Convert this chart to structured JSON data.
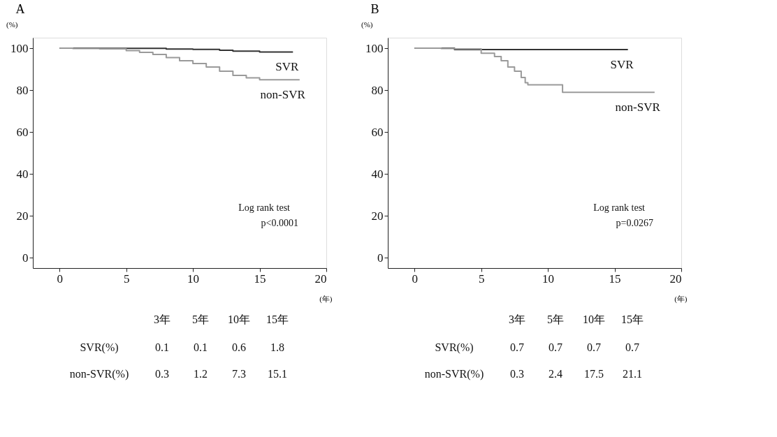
{
  "chart_data": [
    {
      "type": "step",
      "title": "A",
      "xlabel": "(年)",
      "ylabel": "(%)",
      "xlim": [
        -2,
        20
      ],
      "xticks": [
        0,
        5,
        10,
        15,
        20
      ],
      "ylim": [
        -5,
        105
      ],
      "yticks": [
        0,
        20,
        40,
        60,
        80,
        100
      ],
      "grid": false,
      "series": [
        {
          "name": "SVR",
          "color": "#333333",
          "x": [
            0,
            3,
            5,
            8,
            10,
            12,
            13,
            15,
            17.5
          ],
          "values": [
            100,
            99.9,
            99.9,
            99.6,
            99.4,
            99.0,
            98.6,
            98.2,
            98.2
          ]
        },
        {
          "name": "non-SVR",
          "color": "#9a9a9a",
          "x": [
            0,
            1,
            3,
            5,
            6,
            7,
            8,
            9,
            10,
            11,
            12,
            13,
            14,
            15,
            16,
            17,
            18
          ],
          "values": [
            100,
            99.8,
            99.7,
            98.8,
            98.0,
            97.0,
            95.5,
            94.0,
            92.7,
            91.0,
            89.0,
            87.0,
            85.8,
            84.9,
            84.9,
            84.9,
            84.9
          ]
        }
      ],
      "annotations": [
        "Log rank test",
        "p<0.0001",
        "3年",
        "5年",
        "10年",
        "15年",
        "SVR(%)",
        "0.1",
        "0.1",
        "0.6",
        "1.8",
        "non-SVR(%)",
        "0.3",
        "1.2",
        "7.3",
        "15.1"
      ]
    },
    {
      "type": "step",
      "title": "B",
      "xlabel": "(年)",
      "ylabel": "(%)",
      "xlim": [
        -2,
        20
      ],
      "xticks": [
        0,
        5,
        10,
        15,
        20
      ],
      "ylim": [
        -5,
        105
      ],
      "yticks": [
        0,
        20,
        40,
        60,
        80,
        100
      ],
      "grid": false,
      "series": [
        {
          "name": "SVR",
          "color": "#333333",
          "x": [
            0,
            3,
            5,
            16
          ],
          "values": [
            100,
            99.3,
            99.3,
            99.3
          ]
        },
        {
          "name": "non-SVR",
          "color": "#9a9a9a",
          "x": [
            0,
            2,
            3,
            5,
            6,
            6.5,
            7,
            7.5,
            8,
            8.3,
            8.5,
            11,
            11.1,
            18
          ],
          "values": [
            100,
            99.8,
            99.7,
            97.6,
            96,
            94,
            91,
            89,
            86,
            83.5,
            82.5,
            82.5,
            78.9,
            78.9
          ]
        }
      ],
      "annotations": [
        "Log rank test",
        "p=0.0267",
        "3年",
        "5年",
        "10年",
        "15年",
        "SVR(%)",
        "0.7",
        "0.7",
        "0.7",
        "0.7",
        "non-SVR(%)",
        "0.3",
        "2.4",
        "17.5",
        "21.1"
      ]
    }
  ]
}
